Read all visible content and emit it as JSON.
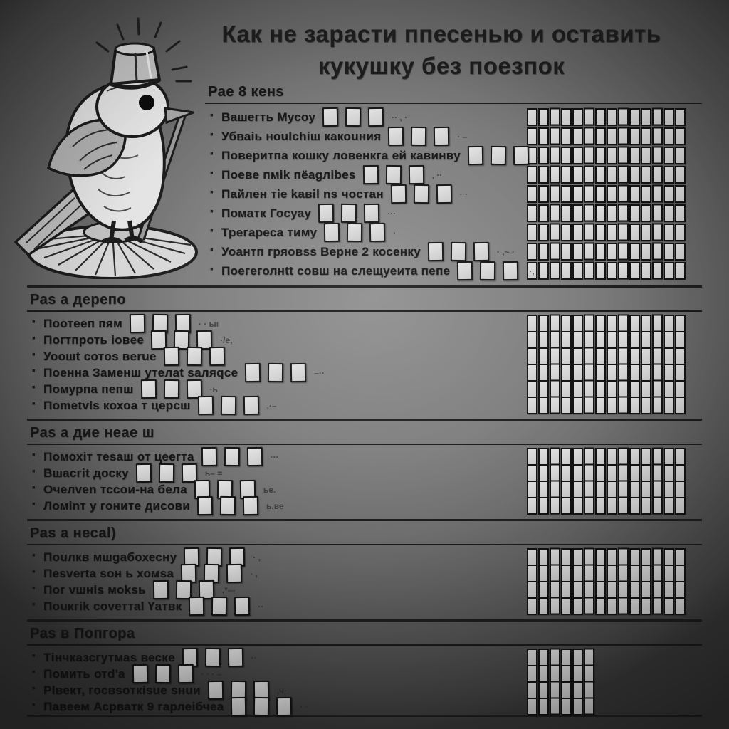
{
  "title": {
    "line1": "Как не зарасти ппесенью и оставить",
    "line2": "кукушку без поезпок"
  },
  "bullet_char": "·",
  "illustration": {
    "name": "cuckoo-bird-with-fez-hat-standing-on-mop-holding-broom"
  },
  "colors": {
    "background_center": "#8f8f8f",
    "background_edge": "#3a3a3a",
    "ink": "#1a1a1a",
    "checkbox_fill": "#d9d9d9",
    "checkbox_border": "#141414"
  },
  "sections": [
    {
      "header": "Рае 8 кенs",
      "grid_cols": 14,
      "items": [
        {
          "label": "Вашегть Мусоу",
          "boxes": 3,
          "trail": "·· , ·"
        },
        {
          "label": "Убваiь ноulchiш какоuния",
          "boxes": 3,
          "trail": "· –"
        },
        {
          "label": "Поверитпа кошку  ловенкга ей кавинву",
          "boxes": 3,
          "trail": "."
        },
        {
          "label": "Поеве пмik пёаgлibes",
          "boxes": 3,
          "trail": ", ··"
        },
        {
          "label": "Пайлен тiе kавil ns чостан",
          "boxes": 3,
          "trail": "· ·"
        },
        {
          "label": "Поматк Госуау",
          "boxes": 3,
          "trail": "···"
        },
        {
          "label": "Трегаресa тиму",
          "boxes": 3,
          "trail": "·"
        },
        {
          "label": "Уоантп гряовss Верне 2 косенку",
          "boxes": 3,
          "trail": "· ,~ ·"
        },
        {
          "label": "Поегеголнtt совш на слещуеита пепе",
          "boxes": 3,
          "trail": "··,"
        }
      ]
    },
    {
      "header": "Раs а дерепо",
      "grid_cols": 14,
      "items": [
        {
          "label": "Поотееп пям",
          "boxes": 3,
          "trail": "· · ыı"
        },
        {
          "label": "Погтпроть ioвee",
          "boxes": 3,
          "trail": "·/е,"
        },
        {
          "label": "Уоошt сотos вerue",
          "boxes": 3,
          "trail": ""
        },
        {
          "label": "Поенна Заменш yтелаt sаляqсе",
          "boxes": 3,
          "trail": "–··"
        },
        {
          "label": "Помурпа пепш",
          "boxes": 3,
          "trail": "·ь"
        },
        {
          "label": "Поmetvls кохоа т церсш",
          "boxes": 3,
          "trail": ",·–"
        }
      ]
    },
    {
      "header": "Раs а дие неае ш",
      "grid_cols": 14,
      "items": [
        {
          "label": "Помохiт тesaш от цеегта",
          "boxes": 3,
          "trail": "···"
        },
        {
          "label": "Вшасгit доску",
          "boxes": 3,
          "trail": "ь– ="
        },
        {
          "label": "Очелvеn тссои-на бела",
          "boxes": 3,
          "trail": "ье."
        },
        {
          "label": "Ломinт у гоните дисови",
          "boxes": 3,
          "trail": "ь.ве"
        }
      ]
    },
    {
      "header": "Раs а несаl)",
      "grid_cols": 14,
      "items": [
        {
          "label": "Поuлкв мшgабохесну",
          "boxes": 3,
          "trail": "· ,"
        },
        {
          "label": "Пesverta sон ь хомsа",
          "boxes": 3,
          "trail": "· ,"
        },
        {
          "label": "Пог vшнis моksь",
          "boxes": 3,
          "trail": ",*–-"
        },
        {
          "label": "Поuкгik соvеттаl Үатвк",
          "boxes": 3,
          "trail": "··"
        }
      ]
    },
    {
      "header": "Раs в Попгора",
      "grid_cols": 6,
      "items": [
        {
          "label": "Тiнчказсгутмаs веске",
          "boxes": 3,
          "trail": "··"
        },
        {
          "label": "Помить отd'а",
          "boxes": 3,
          "trail": "· ·      · –"
        },
        {
          "label": "Рlвект, госвsоткisue sнuи",
          "boxes": 3,
          "trail": ",ч·"
        },
        {
          "label": "Павеем Асрватк 9 гарлеiбчеа",
          "boxes": 3,
          "trail": "· ·"
        }
      ]
    }
  ]
}
